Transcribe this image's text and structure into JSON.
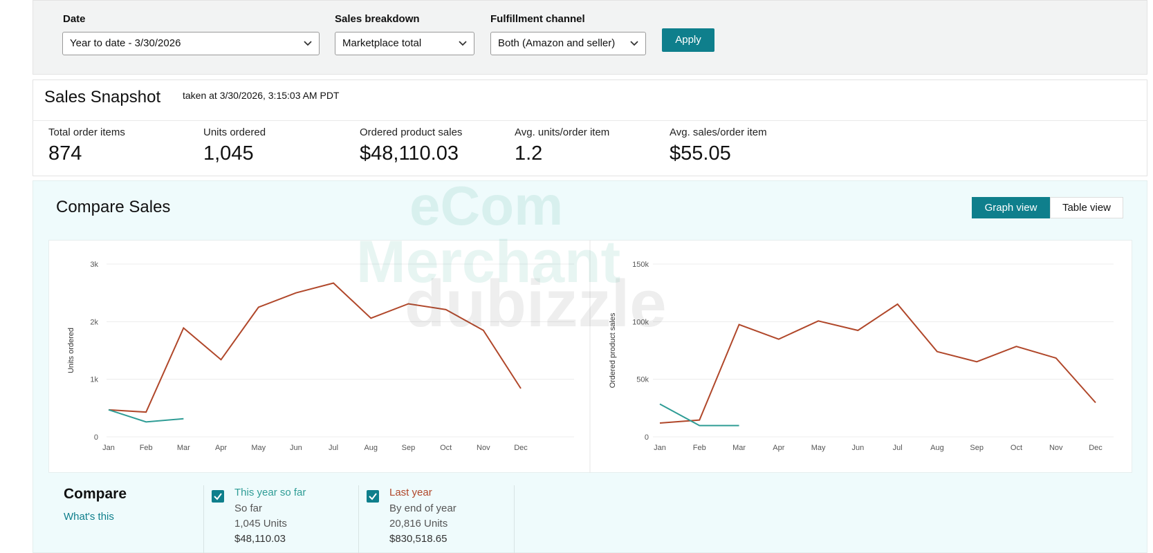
{
  "filters": [
    {
      "label": "Date",
      "value": "Year to date - 3/30/2026"
    },
    {
      "label": "Sales breakdown",
      "value": "Marketplace total"
    },
    {
      "label": "Fulfillment channel",
      "value": "Both (Amazon and seller)"
    }
  ],
  "apply": "Apply",
  "snapshot": {
    "title": "Sales Snapshot",
    "taken": "taken at 3/30/2026, 3:15:03 AM PDT",
    "metrics": [
      {
        "label": "Total order items",
        "value": "874"
      },
      {
        "label": "Units ordered",
        "value": "1,045"
      },
      {
        "label": "Ordered product sales",
        "value": "$48,110.03"
      },
      {
        "label": "Avg. units/order item",
        "value": "1.2"
      },
      {
        "label": "Avg. sales/order item",
        "value": "$55.05"
      }
    ]
  },
  "compare_sales": {
    "title": "Compare Sales",
    "views": [
      "Graph view",
      "Table view"
    ]
  },
  "watermark": [
    "eCom",
    "Merchant",
    "dubizzle"
  ],
  "chart_data": [
    {
      "type": "line",
      "y_label": "Units ordered",
      "categories": [
        "Jan",
        "Feb",
        "Mar",
        "Apr",
        "May",
        "Jun",
        "Jul",
        "Aug",
        "Sep",
        "Oct",
        "Nov",
        "Dec"
      ],
      "series": [
        {
          "name": "This year so far",
          "color": "#2e9c95",
          "values": [
            470,
            260,
            315,
            null,
            null,
            null,
            null,
            null,
            null,
            null,
            null,
            null
          ]
        },
        {
          "name": "Last year",
          "color": "#b0472a",
          "values": [
            470,
            430,
            1890,
            1340,
            2250,
            2500,
            2670,
            2060,
            2310,
            2210,
            1850,
            840
          ]
        }
      ],
      "ylim": [
        0,
        3000
      ],
      "yticks": [
        0,
        {
          "value": 1000,
          "label": "1k"
        },
        {
          "value": 2000,
          "label": "2k"
        },
        {
          "value": 3000,
          "label": "3k"
        }
      ],
      "grid": true
    },
    {
      "type": "line",
      "y_label": "Ordered product sales",
      "categories": [
        "Jan",
        "Feb",
        "Mar",
        "Apr",
        "May",
        "Jun",
        "Jul",
        "Aug",
        "Sep",
        "Oct",
        "Nov",
        "Dec"
      ],
      "series": [
        {
          "color": "#2e9c95",
          "values": [
            28500,
            9800,
            9800,
            null,
            null,
            null,
            null,
            null,
            null,
            null,
            null,
            null
          ]
        },
        {
          "color": "#b0472a",
          "values": [
            12000,
            14600,
            97500,
            84800,
            100600,
            92400,
            115200,
            74000,
            65200,
            78500,
            68400,
            29700
          ]
        }
      ],
      "ylim": [
        0,
        150000
      ],
      "yticks": [
        0,
        {
          "value": 50000,
          "label": "50k"
        },
        {
          "value": 100000,
          "label": "100k"
        },
        {
          "value": 150000,
          "label": "150k"
        }
      ],
      "grid": true
    }
  ],
  "compare": {
    "title": "Compare",
    "help": "What's this",
    "items": [
      {
        "subtitle": "So far",
        "units": "1,045 Units",
        "sales": "$48,110.03"
      },
      {
        "subtitle": "By end of year",
        "units": "20,816 Units",
        "sales": "$830,518.65"
      }
    ]
  }
}
